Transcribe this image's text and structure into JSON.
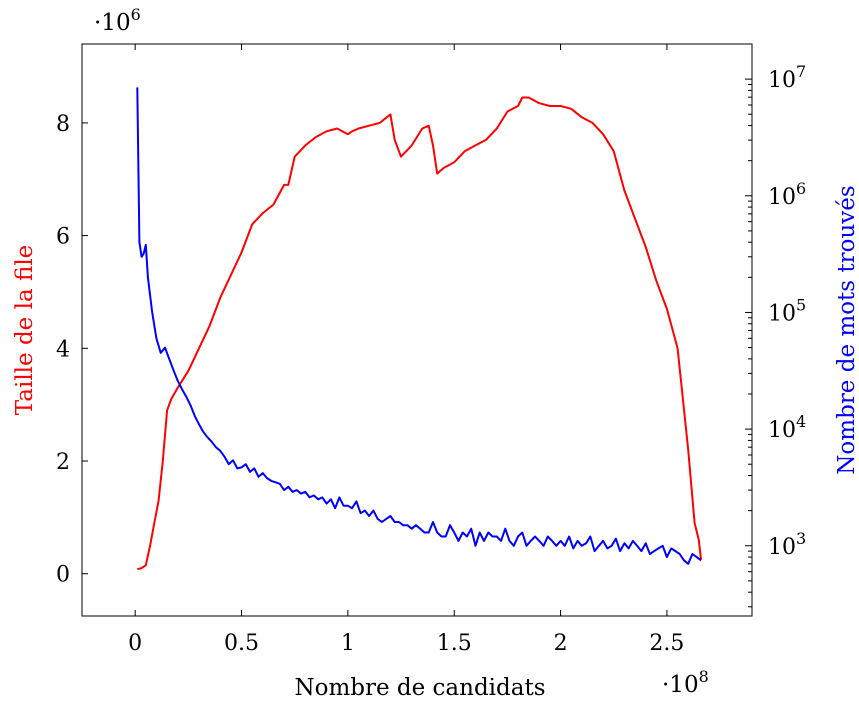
{
  "chart_data": {
    "type": "line",
    "xlabel": "Nombre de candidats",
    "ylabel_left": "Taille de la file",
    "ylabel_right": "Nombre de mots trouvés",
    "x_multiplier": {
      "base": "·10",
      "exp": "8"
    },
    "y_left_multiplier": {
      "base": "·10",
      "exp": "6"
    },
    "xlim": [
      -0.25,
      2.9
    ],
    "ylim_left": [
      -0.75,
      9.4
    ],
    "ylim_right_log": [
      250,
      20000000
    ],
    "y_right_scale": "log",
    "xticks": [
      {
        "value": 0,
        "label": "0"
      },
      {
        "value": 0.5,
        "label": "0.5"
      },
      {
        "value": 1,
        "label": "1"
      },
      {
        "value": 1.5,
        "label": "1.5"
      },
      {
        "value": 2,
        "label": "2"
      },
      {
        "value": 2.5,
        "label": "2.5"
      }
    ],
    "yticks_left": [
      {
        "value": 0,
        "label": "0"
      },
      {
        "value": 2,
        "label": "2"
      },
      {
        "value": 4,
        "label": "4"
      },
      {
        "value": 6,
        "label": "6"
      },
      {
        "value": 8,
        "label": "8"
      }
    ],
    "yticks_right": [
      {
        "value": 1000,
        "base": "10",
        "exp": "3"
      },
      {
        "value": 10000,
        "base": "10",
        "exp": "4"
      },
      {
        "value": 100000,
        "base": "10",
        "exp": "5"
      },
      {
        "value": 1000000,
        "base": "10",
        "exp": "6"
      },
      {
        "value": 10000000,
        "base": "10",
        "exp": "7"
      }
    ],
    "grid": false,
    "series": [
      {
        "axis": "left",
        "color": "#ff0000",
        "x": [
          0.01,
          0.03,
          0.05,
          0.07,
          0.09,
          0.11,
          0.13,
          0.15,
          0.17,
          0.2,
          0.25,
          0.3,
          0.35,
          0.4,
          0.45,
          0.5,
          0.55,
          0.6,
          0.65,
          0.7,
          0.72,
          0.75,
          0.8,
          0.85,
          0.9,
          0.95,
          1.0,
          1.02,
          1.05,
          1.1,
          1.15,
          1.2,
          1.22,
          1.25,
          1.3,
          1.35,
          1.38,
          1.4,
          1.42,
          1.45,
          1.5,
          1.55,
          1.6,
          1.65,
          1.7,
          1.75,
          1.8,
          1.82,
          1.85,
          1.9,
          1.95,
          2.0,
          2.05,
          2.1,
          2.15,
          2.2,
          2.25,
          2.3,
          2.35,
          2.4,
          2.45,
          2.5,
          2.55,
          2.6,
          2.63,
          2.65,
          2.66
        ],
        "y": [
          0.08,
          0.1,
          0.15,
          0.5,
          0.9,
          1.3,
          2.0,
          2.9,
          3.1,
          3.3,
          3.6,
          4.0,
          4.4,
          4.9,
          5.3,
          5.7,
          6.2,
          6.4,
          6.55,
          6.9,
          6.9,
          7.4,
          7.6,
          7.75,
          7.85,
          7.9,
          7.8,
          7.85,
          7.9,
          7.95,
          8.0,
          8.15,
          7.7,
          7.4,
          7.6,
          7.9,
          7.95,
          7.6,
          7.1,
          7.2,
          7.3,
          7.5,
          7.6,
          7.7,
          7.9,
          8.2,
          8.3,
          8.45,
          8.45,
          8.35,
          8.3,
          8.3,
          8.25,
          8.1,
          8.0,
          7.8,
          7.5,
          6.8,
          6.3,
          5.8,
          5.2,
          4.7,
          4.0,
          2.2,
          0.9,
          0.6,
          0.25
        ]
      },
      {
        "axis": "right",
        "color": "#0000ff",
        "x": [
          0.01,
          0.02,
          0.03,
          0.04,
          0.05,
          0.06,
          0.07,
          0.08,
          0.1,
          0.12,
          0.14,
          0.16,
          0.18,
          0.2,
          0.22,
          0.24,
          0.26,
          0.28,
          0.3,
          0.32,
          0.34,
          0.36,
          0.38,
          0.4,
          0.42,
          0.44,
          0.46,
          0.48,
          0.5,
          0.52,
          0.54,
          0.56,
          0.58,
          0.6,
          0.62,
          0.64,
          0.66,
          0.68,
          0.7,
          0.72,
          0.74,
          0.76,
          0.78,
          0.8,
          0.82,
          0.84,
          0.86,
          0.88,
          0.9,
          0.92,
          0.94,
          0.96,
          0.98,
          1.0,
          1.02,
          1.04,
          1.06,
          1.08,
          1.1,
          1.12,
          1.14,
          1.16,
          1.18,
          1.2,
          1.22,
          1.24,
          1.26,
          1.28,
          1.3,
          1.32,
          1.34,
          1.36,
          1.38,
          1.4,
          1.42,
          1.44,
          1.46,
          1.48,
          1.5,
          1.52,
          1.54,
          1.56,
          1.58,
          1.6,
          1.62,
          1.64,
          1.66,
          1.68,
          1.7,
          1.72,
          1.74,
          1.76,
          1.78,
          1.8,
          1.82,
          1.84,
          1.86,
          1.88,
          1.9,
          1.92,
          1.94,
          1.96,
          1.98,
          2.0,
          2.02,
          2.04,
          2.06,
          2.08,
          2.1,
          2.12,
          2.14,
          2.16,
          2.18,
          2.2,
          2.22,
          2.24,
          2.26,
          2.28,
          2.3,
          2.32,
          2.34,
          2.36,
          2.38,
          2.4,
          2.42,
          2.44,
          2.46,
          2.48,
          2.5,
          2.52,
          2.54,
          2.56,
          2.58,
          2.6,
          2.62,
          2.64,
          2.66
        ],
        "y": [
          8500000,
          400000,
          300000,
          320000,
          380000,
          200000,
          140000,
          100000,
          60000,
          45000,
          50000,
          40000,
          32000,
          26000,
          22000,
          19000,
          16000,
          13000,
          11000,
          9500,
          8500,
          7800,
          7000,
          6500,
          5800,
          5000,
          5400,
          4600,
          4700,
          5000,
          4300,
          4600,
          3900,
          4200,
          3800,
          3600,
          3500,
          3400,
          3000,
          3200,
          2900,
          3000,
          2800,
          2900,
          2600,
          2700,
          2500,
          2600,
          2300,
          2500,
          2100,
          2600,
          2200,
          2200,
          2100,
          2400,
          1900,
          2000,
          1800,
          2000,
          1700,
          1600,
          1700,
          1800,
          1600,
          1600,
          1500,
          1500,
          1400,
          1500,
          1400,
          1300,
          1300,
          1600,
          1300,
          1200,
          1200,
          1500,
          1300,
          1100,
          1300,
          1200,
          1400,
          1000,
          1300,
          1100,
          1300,
          1200,
          1200,
          1100,
          1400,
          1100,
          1000,
          1200,
          1300,
          1000,
          1100,
          1200,
          1100,
          1000,
          1200,
          1100,
          1000,
          1100,
          1000,
          1200,
          950,
          1100,
          1000,
          1050,
          1200,
          900,
          1000,
          1100,
          950,
          1000,
          1150,
          900,
          1050,
          950,
          1100,
          1000,
          900,
          1050,
          850,
          900,
          950,
          1000,
          800,
          950,
          900,
          850,
          750,
          700,
          850,
          800,
          750
        ]
      }
    ]
  }
}
